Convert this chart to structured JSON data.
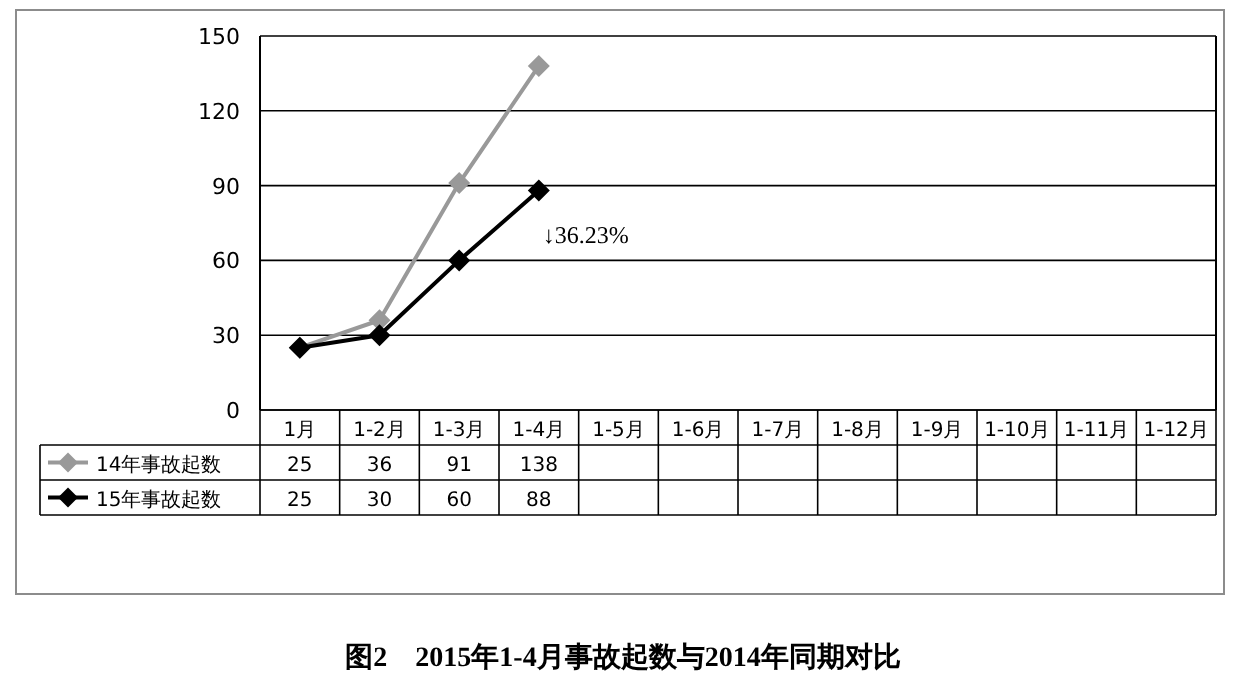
{
  "chart_data": {
    "type": "line",
    "title": "图2　2015年1-4月事故起数与2014年同期对比",
    "categories": [
      "1月",
      "1-2月",
      "1-3月",
      "1-4月",
      "1-5月",
      "1-6月",
      "1-7月",
      "1-8月",
      "1-9月",
      "1-10月",
      "1-11月",
      "1-12月"
    ],
    "series": [
      {
        "name": "14年事故起数",
        "color": "#999999",
        "values": [
          25,
          36,
          91,
          138,
          null,
          null,
          null,
          null,
          null,
          null,
          null,
          null
        ]
      },
      {
        "name": "15年事故起数",
        "color": "#000000",
        "values": [
          25,
          30,
          60,
          88,
          null,
          null,
          null,
          null,
          null,
          null,
          null,
          null
        ]
      }
    ],
    "ylim": [
      0,
      150
    ],
    "yticks": [
      0,
      30,
      60,
      90,
      120,
      150
    ],
    "grid": "y",
    "legend": "bottom left",
    "marker": "diamond",
    "line_style": "solid",
    "data_labels": true,
    "annotations": [
      {
        "text": "↓36.23%",
        "x": "1-4月",
        "y": 88
      }
    ]
  }
}
